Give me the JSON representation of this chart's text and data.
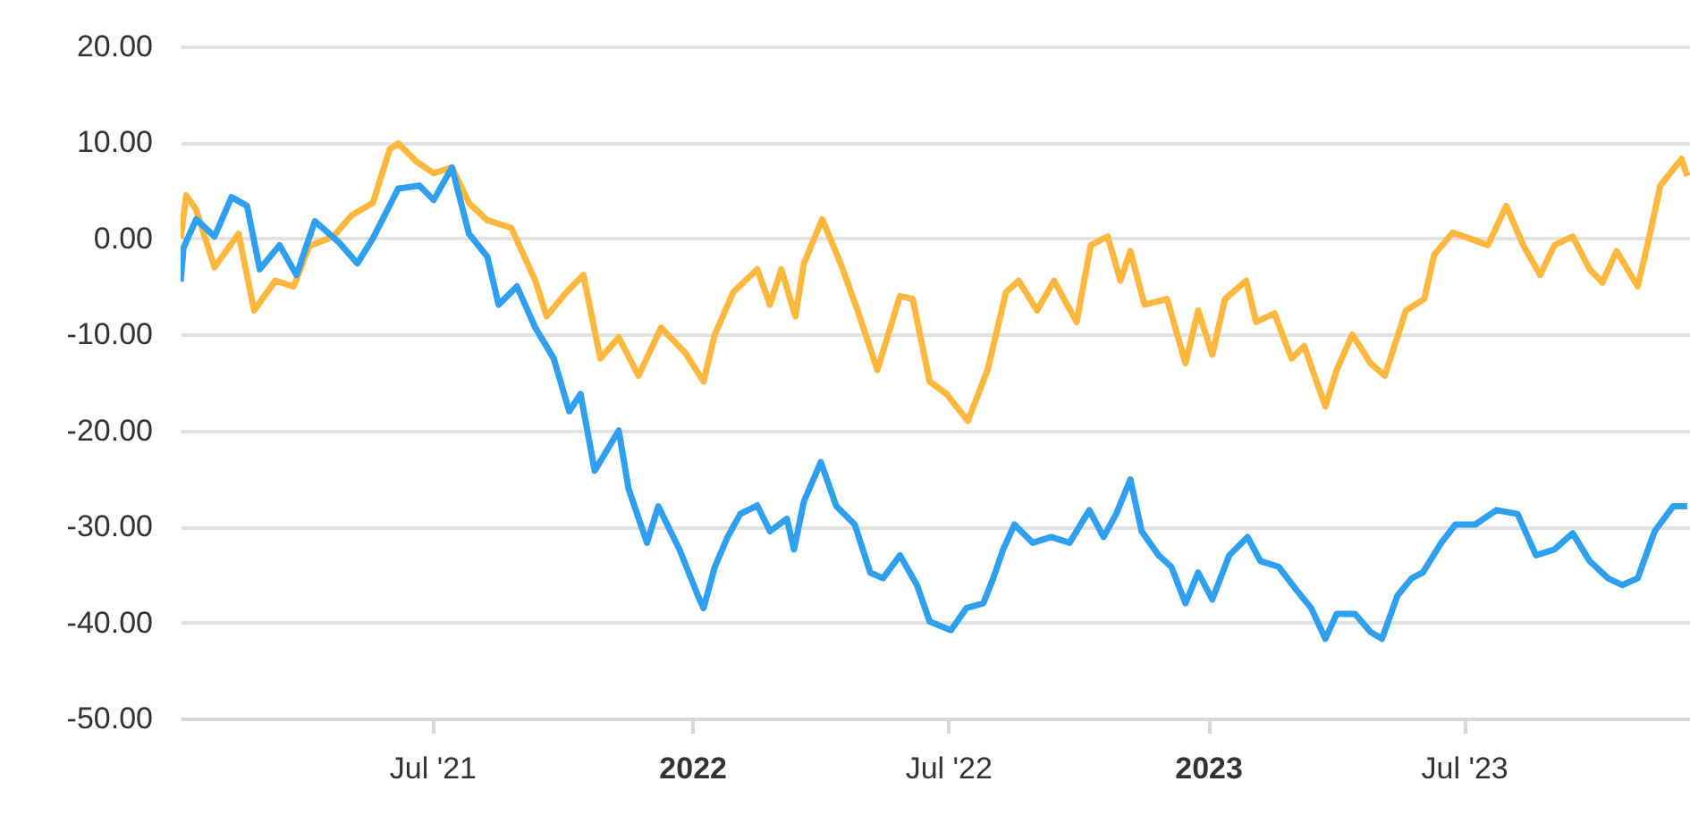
{
  "chart_data": {
    "type": "line",
    "xlim": [
      "2021-01-04",
      "2023-12-08"
    ],
    "xticks": [
      {
        "value": "2021-07-01",
        "label": "Jul '21"
      },
      {
        "value": "2022-01-01",
        "label": "2022"
      },
      {
        "value": "2022-07-01",
        "label": "Jul '22"
      },
      {
        "value": "2023-01-01",
        "label": "2023"
      },
      {
        "value": "2023-07-01",
        "label": "Jul '23"
      }
    ],
    "ylim": [
      -50,
      20
    ],
    "yticks": [
      {
        "value": -50,
        "label": "-50.00"
      },
      {
        "value": -40,
        "label": "-40.00"
      },
      {
        "value": -30,
        "label": "-30.00"
      },
      {
        "value": -20,
        "label": "-20.00"
      },
      {
        "value": -10,
        "label": "-10.00"
      },
      {
        "value": 0,
        "label": "0.00"
      },
      {
        "value": 10,
        "label": "10.00"
      },
      {
        "value": 20,
        "label": "20.00"
      }
    ],
    "grid": "y",
    "series": [
      {
        "color": "#ffb83d",
        "x": [
          "2021-01-04",
          "2021-01-08",
          "2021-01-15",
          "2021-01-28",
          "2021-02-14",
          "2021-02-25",
          "2021-03-12",
          "2021-03-25",
          "2021-04-05",
          "2021-04-22",
          "2021-05-05",
          "2021-05-20",
          "2021-06-01",
          "2021-06-07",
          "2021-06-20",
          "2021-07-02",
          "2021-07-15",
          "2021-07-27",
          "2021-08-09",
          "2021-08-26",
          "2021-09-12",
          "2021-09-20",
          "2021-10-04",
          "2021-10-16",
          "2021-10-28",
          "2021-11-10",
          "2021-11-24",
          "2021-12-10",
          "2021-12-27",
          "2022-01-09",
          "2022-01-17",
          "2022-01-30",
          "2022-02-16",
          "2022-02-25",
          "2022-03-05",
          "2022-03-15",
          "2022-03-21",
          "2022-04-03",
          "2022-04-16",
          "2022-04-28",
          "2022-05-12",
          "2022-05-28",
          "2022-06-06",
          "2022-06-18",
          "2022-06-30",
          "2022-07-15",
          "2022-07-29",
          "2022-08-11",
          "2022-08-20",
          "2022-09-02",
          "2022-09-14",
          "2022-09-30",
          "2022-10-10",
          "2022-10-22",
          "2022-10-31",
          "2022-11-07",
          "2022-11-17",
          "2022-12-03",
          "2022-12-16",
          "2022-12-25",
          "2023-01-04",
          "2023-01-13",
          "2023-01-28",
          "2023-02-04",
          "2023-02-17",
          "2023-03-01",
          "2023-03-10",
          "2023-03-25",
          "2023-04-02",
          "2023-04-13",
          "2023-04-26",
          "2023-05-06",
          "2023-05-21",
          "2023-06-03",
          "2023-06-10",
          "2023-06-23",
          "2023-07-05",
          "2023-07-18",
          "2023-07-31",
          "2023-08-12",
          "2023-08-24",
          "2023-09-03",
          "2023-09-16",
          "2023-09-28",
          "2023-10-07",
          "2023-10-17",
          "2023-11-01",
          "2023-11-09",
          "2023-11-17",
          "2023-12-02",
          "2023-12-06"
        ],
        "values": [
          0,
          4.5,
          3,
          -3,
          0.5,
          -7.5,
          -4.4,
          -5,
          -0.8,
          0.2,
          2.4,
          3.7,
          9.3,
          9.9,
          8,
          6.8,
          7.4,
          3.7,
          1.9,
          1.1,
          -4.4,
          -8.1,
          -5.6,
          -3.8,
          -12.5,
          -10.3,
          -14.3,
          -9.3,
          -11.9,
          -14.9,
          -10,
          -5.6,
          -3.2,
          -6.9,
          -3.2,
          -8.1,
          -2.6,
          2,
          -2.6,
          -7.5,
          -13.7,
          -6,
          -6.3,
          -14.9,
          -16.2,
          -19,
          -13.7,
          -5.6,
          -4.4,
          -7.5,
          -4.4,
          -8.7,
          -0.7,
          0.2,
          -4.4,
          -1.3,
          -6.9,
          -6.3,
          -13,
          -7.5,
          -12.1,
          -6.3,
          -4.4,
          -8.7,
          -7.8,
          -12.5,
          -11.2,
          -17.5,
          -13.7,
          -10,
          -13,
          -14.3,
          -7.5,
          -6.3,
          -1.7,
          0.6,
          0,
          -0.7,
          3.4,
          -0.7,
          -3.8,
          -0.7,
          0.2,
          -3.2,
          -4.6,
          -1.3,
          -5,
          0,
          5.5,
          8.3,
          6.5
        ]
      },
      {
        "color": "#2f9ff0",
        "x": [
          "2021-01-04",
          "2021-01-06",
          "2021-01-15",
          "2021-01-28",
          "2021-02-09",
          "2021-02-20",
          "2021-03-01",
          "2021-03-15",
          "2021-03-27",
          "2021-04-09",
          "2021-04-26",
          "2021-05-09",
          "2021-05-20",
          "2021-06-07",
          "2021-06-22",
          "2021-07-02",
          "2021-07-15",
          "2021-07-27",
          "2021-08-09",
          "2021-08-17",
          "2021-08-30",
          "2021-09-12",
          "2021-09-25",
          "2021-10-06",
          "2021-10-14",
          "2021-10-24",
          "2021-11-10",
          "2021-11-17",
          "2021-11-30",
          "2021-12-08",
          "2021-12-23",
          "2022-01-05",
          "2022-01-09",
          "2022-01-17",
          "2022-01-26",
          "2022-02-04",
          "2022-02-16",
          "2022-02-25",
          "2022-03-09",
          "2022-03-14",
          "2022-03-21",
          "2022-04-02",
          "2022-04-13",
          "2022-04-26",
          "2022-05-07",
          "2022-05-16",
          "2022-05-28",
          "2022-06-09",
          "2022-06-18",
          "2022-07-03",
          "2022-07-14",
          "2022-07-26",
          "2022-08-02",
          "2022-08-09",
          "2022-08-17",
          "2022-08-30",
          "2022-09-12",
          "2022-09-25",
          "2022-10-09",
          "2022-10-19",
          "2022-10-28",
          "2022-11-07",
          "2022-11-15",
          "2022-11-27",
          "2022-12-06",
          "2022-12-16",
          "2022-12-25",
          "2023-01-04",
          "2023-01-16",
          "2023-01-29",
          "2023-02-07",
          "2023-02-20",
          "2023-03-05",
          "2023-03-15",
          "2023-03-25",
          "2023-04-02",
          "2023-04-15",
          "2023-04-26",
          "2023-05-04",
          "2023-05-15",
          "2023-05-25",
          "2023-06-02",
          "2023-06-15",
          "2023-06-25",
          "2023-07-09",
          "2023-07-24",
          "2023-08-08",
          "2023-08-21",
          "2023-09-03",
          "2023-09-16",
          "2023-09-28",
          "2023-10-11",
          "2023-10-21",
          "2023-11-01",
          "2023-11-13",
          "2023-11-26",
          "2023-12-06"
        ],
        "values": [
          -4.5,
          -1,
          2,
          0.2,
          4.3,
          3.4,
          -3.2,
          -0.7,
          -3.8,
          1.8,
          -0.4,
          -2.6,
          0,
          5.2,
          5.5,
          4,
          7.4,
          0.5,
          -1.9,
          -6.9,
          -5,
          -9.3,
          -12.5,
          -18,
          -16.2,
          -24.2,
          -20,
          -26.1,
          -31.7,
          -27.9,
          -32.4,
          -37.2,
          -38.5,
          -34.2,
          -31.1,
          -28.7,
          -27.8,
          -30.5,
          -29.2,
          -32.4,
          -27.4,
          -23.3,
          -27.9,
          -29.8,
          -34.8,
          -35.4,
          -33,
          -36.1,
          -39.9,
          -40.8,
          -38.5,
          -38,
          -35.4,
          -32.4,
          -29.8,
          -31.7,
          -31.1,
          -31.7,
          -28.3,
          -31.1,
          -28.7,
          -25.1,
          -30.5,
          -33,
          -34.2,
          -38,
          -34.8,
          -37.6,
          -33,
          -31.1,
          -33.6,
          -34.2,
          -36.7,
          -38.5,
          -41.7,
          -39.1,
          -39.1,
          -41,
          -41.7,
          -37.2,
          -35.4,
          -34.8,
          -31.7,
          -29.8,
          -29.8,
          -28.3,
          -28.7,
          -33,
          -32.4,
          -30.7,
          -33.6,
          -35.4,
          -36.1,
          -35.4,
          -30.5,
          -27.9,
          -27.9
        ]
      }
    ]
  }
}
